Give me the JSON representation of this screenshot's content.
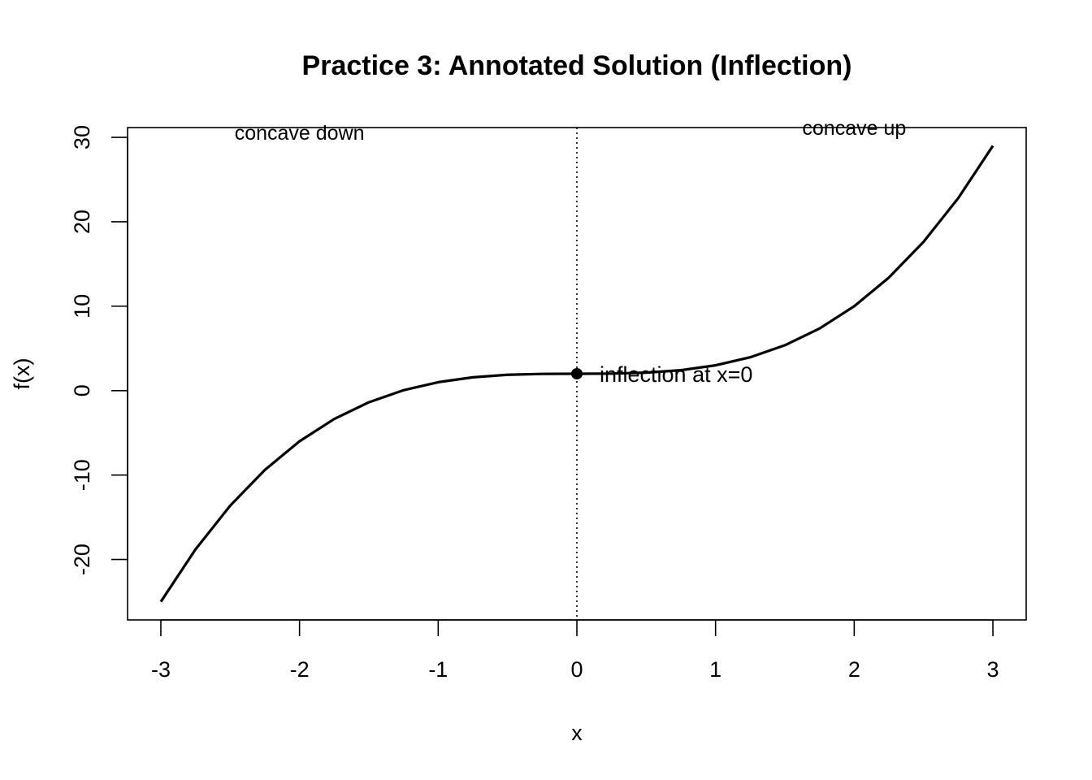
{
  "chart_data": {
    "type": "line",
    "title": "Practice 3: Annotated Solution (Inflection)",
    "xlabel": "x",
    "ylabel": "f(x)",
    "xlim": [
      -3.24,
      3.24
    ],
    "ylim": [
      -27.16,
      31.16
    ],
    "x_ticks": [
      -3,
      -2,
      -1,
      0,
      1,
      2,
      3
    ],
    "x_tick_labels": [
      "-3",
      "-2",
      "-1",
      "0",
      "1",
      "2",
      "3"
    ],
    "y_ticks": [
      -20,
      -10,
      0,
      10,
      20,
      30
    ],
    "y_tick_labels": [
      "-20",
      "-10",
      "0",
      "10",
      "20",
      "30"
    ],
    "grid": false,
    "series": [
      {
        "color": "#000000",
        "x": [
          -3.0,
          -2.75,
          -2.5,
          -2.25,
          -2.0,
          -1.75,
          -1.5,
          -1.25,
          -1.0,
          -0.75,
          -0.5,
          -0.25,
          0.0,
          0.25,
          0.5,
          0.75,
          1.0,
          1.25,
          1.5,
          1.75,
          2.0,
          2.25,
          2.5,
          2.75,
          3.0
        ],
        "y": [
          -25.0,
          -18.8,
          -13.63,
          -9.39,
          -6.0,
          -3.36,
          -1.38,
          0.05,
          1.0,
          1.58,
          1.88,
          1.98,
          2.0,
          2.02,
          2.13,
          2.42,
          3.0,
          3.95,
          5.38,
          7.36,
          10.0,
          13.39,
          17.63,
          22.8,
          29.0
        ]
      }
    ],
    "inflection_point": {
      "x": 0,
      "y": 2
    },
    "vline_x": 0,
    "vline_style": "dotted",
    "annotations": {
      "left": {
        "text": "concave down",
        "x": -2,
        "y": 30
      },
      "right": {
        "text": "concave up",
        "x": 2,
        "y": 30
      },
      "point": {
        "text": "inflection at x=0",
        "x": 0,
        "y": 2
      }
    }
  }
}
